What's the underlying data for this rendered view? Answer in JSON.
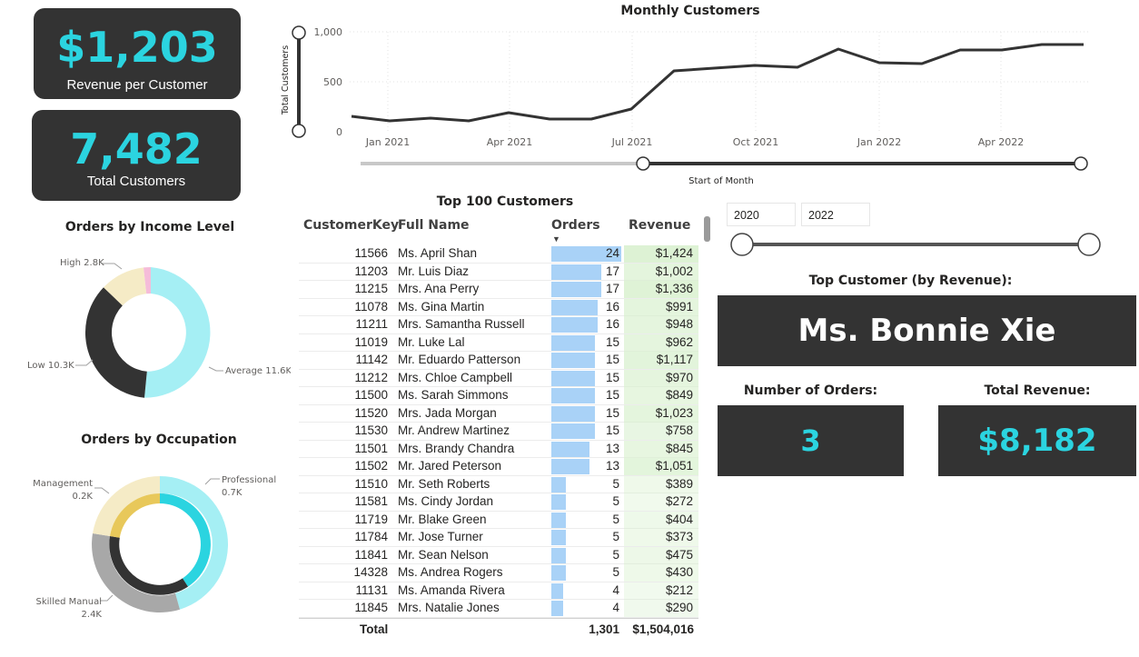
{
  "kpis": {
    "revenue_per_customer": {
      "value": "$1,203",
      "label": "Revenue per Customer"
    },
    "total_customers": {
      "value": "7,482",
      "label": "Total Customers"
    }
  },
  "monthly_customers": {
    "title": "Monthly Customers",
    "y_axis_label": "Total Customers",
    "x_axis_label": "Start of Month",
    "y_ticks": [
      "1,000",
      "500",
      "0"
    ],
    "x_ticks": [
      "Jan 2021",
      "Apr 2021",
      "Jul 2021",
      "Oct 2021",
      "Jan 2022",
      "Apr 2022"
    ]
  },
  "income_chart": {
    "title": "Orders by Income Level",
    "labels": {
      "high": "High 2.8K",
      "low": "Low 10.3K",
      "average": "Average 11.6K"
    }
  },
  "occupation_chart": {
    "title": "Orders by Occupation",
    "labels": {
      "management": [
        "Management",
        "0.2K"
      ],
      "professional": [
        "Professional",
        "0.7K"
      ],
      "skilled": [
        "Skilled Manual",
        "2.4K"
      ]
    }
  },
  "table": {
    "title": "Top 100 Customers",
    "headers": {
      "key": "CustomerKey",
      "name": "Full Name",
      "orders": "Orders",
      "revenue": "Revenue"
    },
    "sort_indicator": "▼",
    "rows": [
      {
        "key": "11566",
        "name": "Ms. April Shan",
        "orders": 24,
        "revenue": "$1,424"
      },
      {
        "key": "11203",
        "name": "Mr. Luis Diaz",
        "orders": 17,
        "revenue": "$1,002"
      },
      {
        "key": "11215",
        "name": "Mrs. Ana Perry",
        "orders": 17,
        "revenue": "$1,336"
      },
      {
        "key": "11078",
        "name": "Ms. Gina Martin",
        "orders": 16,
        "revenue": "$991"
      },
      {
        "key": "11211",
        "name": "Mrs. Samantha Russell",
        "orders": 16,
        "revenue": "$948"
      },
      {
        "key": "11019",
        "name": "Mr. Luke Lal",
        "orders": 15,
        "revenue": "$962"
      },
      {
        "key": "11142",
        "name": "Mr. Eduardo Patterson",
        "orders": 15,
        "revenue": "$1,117"
      },
      {
        "key": "11212",
        "name": "Mrs. Chloe Campbell",
        "orders": 15,
        "revenue": "$970"
      },
      {
        "key": "11500",
        "name": "Ms. Sarah Simmons",
        "orders": 15,
        "revenue": "$849"
      },
      {
        "key": "11520",
        "name": "Mrs. Jada Morgan",
        "orders": 15,
        "revenue": "$1,023"
      },
      {
        "key": "11530",
        "name": "Mr. Andrew Martinez",
        "orders": 15,
        "revenue": "$758"
      },
      {
        "key": "11501",
        "name": "Mrs. Brandy Chandra",
        "orders": 13,
        "revenue": "$845"
      },
      {
        "key": "11502",
        "name": "Mr. Jared Peterson",
        "orders": 13,
        "revenue": "$1,051"
      },
      {
        "key": "11510",
        "name": "Mr. Seth Roberts",
        "orders": 5,
        "revenue": "$389"
      },
      {
        "key": "11581",
        "name": "Ms. Cindy Jordan",
        "orders": 5,
        "revenue": "$272"
      },
      {
        "key": "11719",
        "name": "Mr. Blake Green",
        "orders": 5,
        "revenue": "$404"
      },
      {
        "key": "11784",
        "name": "Mr. Jose Turner",
        "orders": 5,
        "revenue": "$373"
      },
      {
        "key": "11841",
        "name": "Mr. Sean Nelson",
        "orders": 5,
        "revenue": "$475"
      },
      {
        "key": "14328",
        "name": "Ms. Andrea Rogers",
        "orders": 5,
        "revenue": "$430"
      },
      {
        "key": "11131",
        "name": "Ms. Amanda Rivera",
        "orders": 4,
        "revenue": "$212"
      },
      {
        "key": "11845",
        "name": "Mrs. Natalie Jones",
        "orders": 4,
        "revenue": "$290"
      }
    ],
    "total": {
      "label": "Total",
      "orders": "1,301",
      "revenue": "$1,504,016"
    }
  },
  "slicer": {
    "start": "2020",
    "end": "2022"
  },
  "top_customer": {
    "heading": "Top Customer (by Revenue):",
    "name": "Ms. Bonnie Xie",
    "orders_label": "Number of Orders:",
    "orders_value": "3",
    "revenue_label": "Total Revenue:",
    "revenue_value": "$8,182"
  },
  "colors": {
    "card_bg": "#333333",
    "accent_cyan": "#2bd4e0",
    "bar_blue": "#a9d2f7",
    "revenue_green": "#e9f8e4",
    "pie_cyan": "#a5eff4",
    "pie_cream": "#f5ebc6",
    "pie_pink": "#f5bcd9",
    "pie_gray": "#a8a8a8"
  }
}
